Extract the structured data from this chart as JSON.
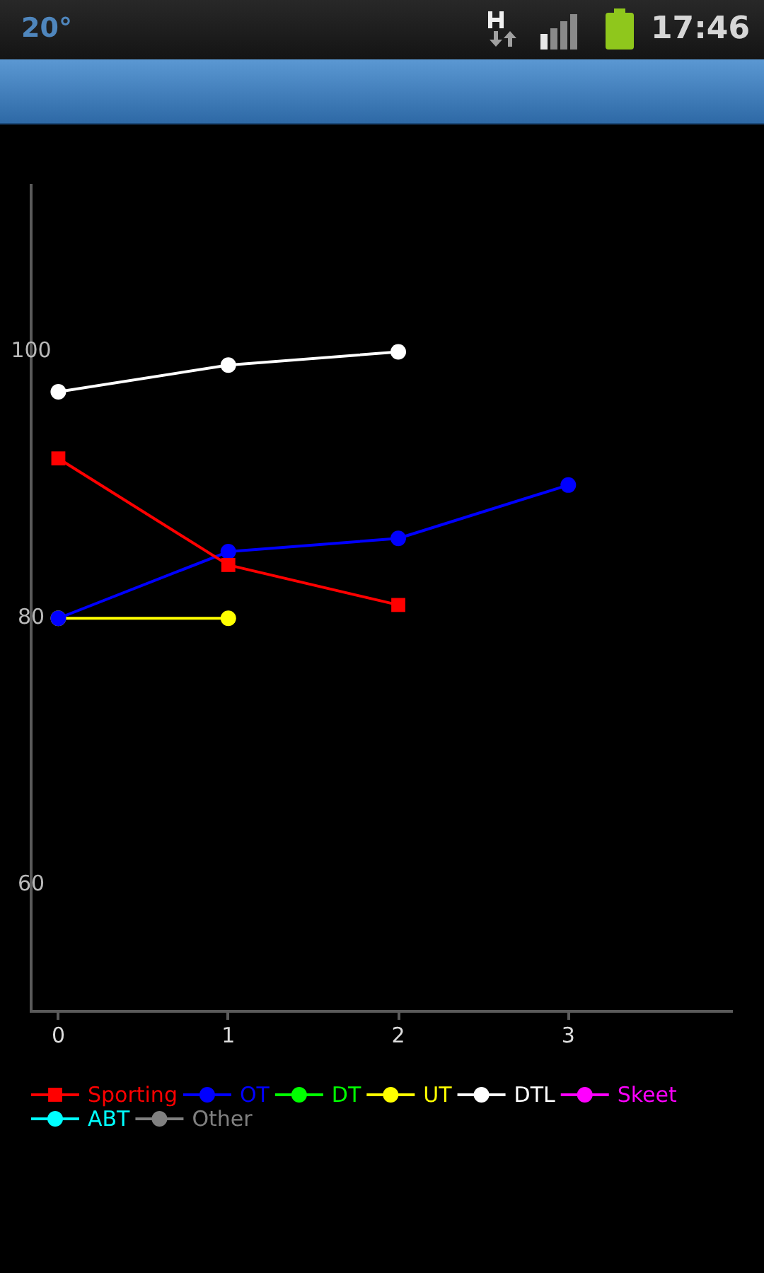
{
  "chart_data": {
    "type": "line",
    "x": [
      0,
      1,
      2,
      3
    ],
    "xlim": [
      -0.16,
      3.96
    ],
    "xticks": [
      0,
      1,
      2,
      3
    ],
    "ylim": [
      50.5,
      112.5
    ],
    "yticks": [
      60,
      80,
      100
    ],
    "grid": false,
    "legend": "bottom",
    "marker": "circle",
    "line_style": "solid",
    "annotations": [
      "20°",
      "17:46"
    ],
    "series": [
      {
        "name": "Sporting",
        "color": "#ff0000",
        "marker": "square",
        "values": [
          92,
          84,
          81,
          null
        ]
      },
      {
        "name": "OT",
        "color": "#0000ff",
        "values": [
          80,
          85,
          86,
          90
        ]
      },
      {
        "name": "DT",
        "color": "#00ff00",
        "values": [
          null,
          null,
          null,
          null
        ]
      },
      {
        "name": "UT",
        "color": "#ffff00",
        "values": [
          80,
          80,
          null,
          null
        ]
      },
      {
        "name": "DTL",
        "color": "#ffffff",
        "values": [
          97,
          99,
          100,
          null
        ]
      },
      {
        "name": "Skeet",
        "color": "#ff00ff",
        "values": [
          null,
          null,
          null,
          null
        ]
      },
      {
        "name": "ABT",
        "color": "#00ffff",
        "values": [
          null,
          null,
          null,
          null
        ]
      },
      {
        "name": "Other",
        "color": "#808080",
        "values": [
          null,
          null,
          null,
          null
        ]
      }
    ]
  }
}
